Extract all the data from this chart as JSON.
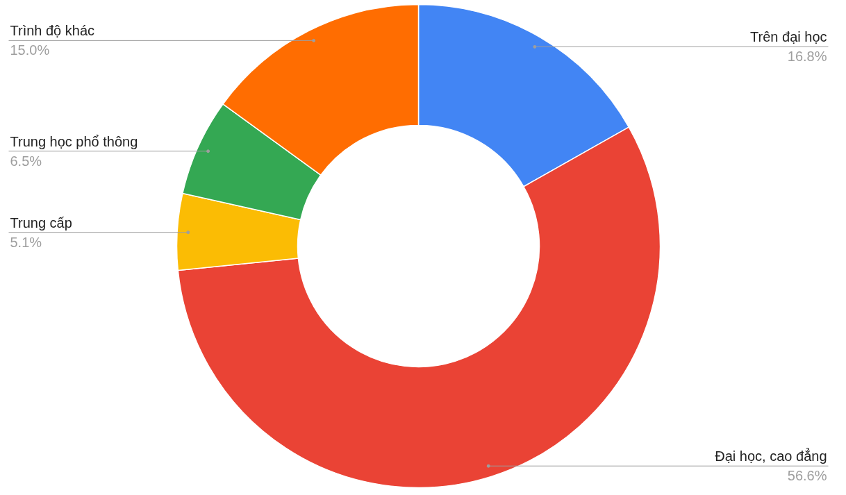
{
  "chart_data": {
    "type": "donut",
    "categories": [
      "Trên đại học",
      "Đại học, cao đẳng",
      "Trung cấp",
      "Trung học phổ thông",
      "Trình độ khác"
    ],
    "values": [
      16.8,
      56.6,
      5.1,
      6.5,
      15.0
    ],
    "colors": [
      "#4285f4",
      "#ea4335",
      "#fbbc04",
      "#34a853",
      "#ff6d01"
    ],
    "value_labels": [
      "16.8%",
      "56.6%",
      "5.1%",
      "6.5%",
      "15.0%"
    ]
  }
}
